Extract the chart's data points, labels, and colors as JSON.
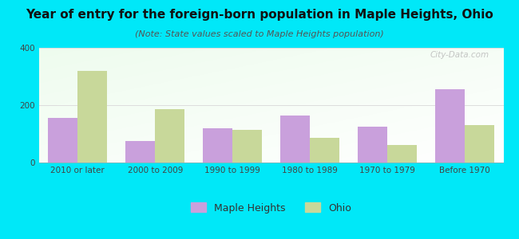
{
  "title": "Year of entry for the foreign-born population in Maple Heights, Ohio",
  "subtitle": "(Note: State values scaled to Maple Heights population)",
  "categories": [
    "2010 or later",
    "2000 to 2009",
    "1990 to 1999",
    "1980 to 1989",
    "1970 to 1979",
    "Before 1970"
  ],
  "maple_heights": [
    155,
    75,
    120,
    165,
    125,
    255
  ],
  "ohio": [
    320,
    185,
    115,
    85,
    60,
    130
  ],
  "maple_color": "#c9a0dc",
  "ohio_color": "#c8d89a",
  "bg_outer": "#00e8f8",
  "ylim": [
    0,
    400
  ],
  "yticks": [
    0,
    200,
    400
  ],
  "legend_maple": "Maple Heights",
  "legend_ohio": "Ohio",
  "bar_width": 0.38,
  "watermark": "City-Data.com",
  "title_fontsize": 11,
  "subtitle_fontsize": 8,
  "tick_fontsize": 7.5,
  "legend_fontsize": 9
}
